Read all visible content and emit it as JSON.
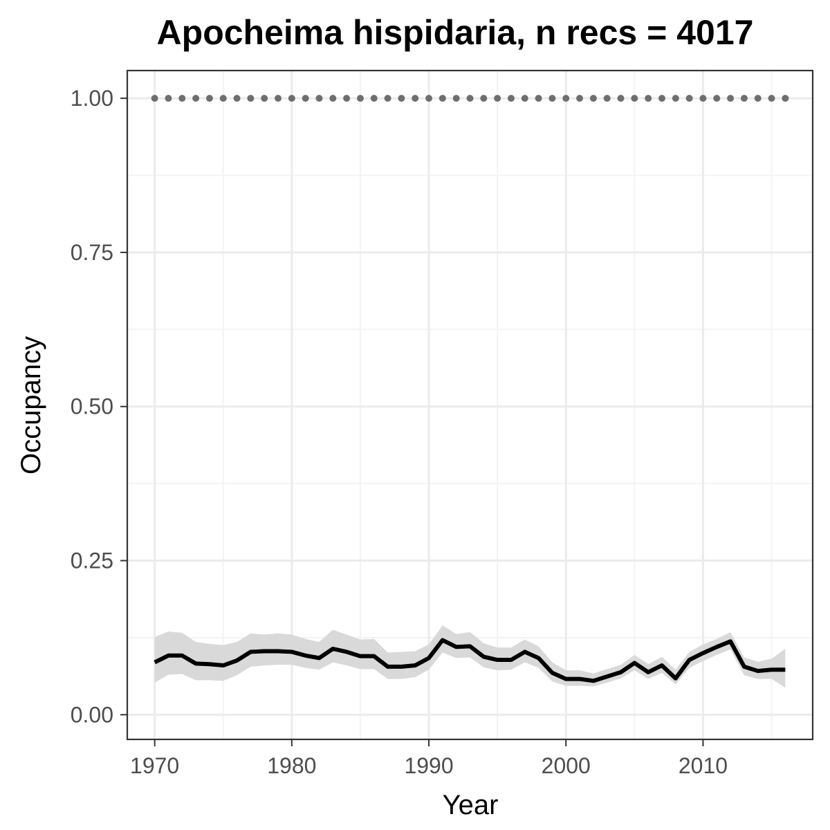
{
  "chart_data": {
    "type": "line",
    "title": "Apocheima hispidaria, n recs = 4017",
    "xlabel": "Year",
    "ylabel": "Occupancy",
    "xlim": [
      1968,
      2018
    ],
    "ylim": [
      -0.04,
      1.045
    ],
    "x_ticks": [
      1970,
      1980,
      1990,
      2000,
      2010
    ],
    "x_tick_labels": [
      "1970",
      "1980",
      "1990",
      "2000",
      "2010"
    ],
    "y_ticks": [
      0,
      0.25,
      0.5,
      0.75,
      1.0
    ],
    "y_tick_labels": [
      "0.00",
      "0.25",
      "0.50",
      "0.75",
      "1.00"
    ],
    "grid": true,
    "colors": {
      "line": "#000000",
      "ribbon": "#d9d9d9",
      "reference_points": "#6e6e6e"
    },
    "series": [
      {
        "kind": "line_with_ribbon",
        "x": [
          1970,
          1971,
          1972,
          1973,
          1974,
          1975,
          1976,
          1977,
          1978,
          1979,
          1980,
          1981,
          1982,
          1983,
          1984,
          1985,
          1986,
          1987,
          1988,
          1989,
          1990,
          1991,
          1992,
          1993,
          1994,
          1995,
          1996,
          1997,
          1998,
          1999,
          2000,
          2001,
          2002,
          2003,
          2004,
          2005,
          2006,
          2007,
          2008,
          2009,
          2010,
          2011,
          2012,
          2013,
          2014,
          2015,
          2016
        ],
        "y": [
          0.085,
          0.096,
          0.096,
          0.083,
          0.082,
          0.08,
          0.088,
          0.102,
          0.103,
          0.103,
          0.102,
          0.096,
          0.092,
          0.107,
          0.102,
          0.095,
          0.095,
          0.078,
          0.078,
          0.08,
          0.092,
          0.121,
          0.11,
          0.111,
          0.094,
          0.089,
          0.089,
          0.102,
          0.092,
          0.068,
          0.058,
          0.058,
          0.055,
          0.062,
          0.069,
          0.084,
          0.069,
          0.08,
          0.059,
          0.089,
          0.1,
          0.11,
          0.119,
          0.078,
          0.071,
          0.073,
          0.073
        ],
        "lower": [
          0.052,
          0.065,
          0.066,
          0.056,
          0.056,
          0.055,
          0.064,
          0.078,
          0.08,
          0.081,
          0.081,
          0.076,
          0.073,
          0.085,
          0.08,
          0.074,
          0.074,
          0.058,
          0.058,
          0.061,
          0.073,
          0.101,
          0.092,
          0.093,
          0.077,
          0.072,
          0.073,
          0.085,
          0.076,
          0.054,
          0.047,
          0.047,
          0.046,
          0.052,
          0.059,
          0.072,
          0.058,
          0.068,
          0.049,
          0.076,
          0.087,
          0.097,
          0.106,
          0.064,
          0.058,
          0.058,
          0.044
        ],
        "upper": [
          0.126,
          0.135,
          0.133,
          0.118,
          0.115,
          0.113,
          0.118,
          0.132,
          0.13,
          0.132,
          0.13,
          0.123,
          0.118,
          0.138,
          0.13,
          0.122,
          0.123,
          0.101,
          0.102,
          0.103,
          0.114,
          0.145,
          0.131,
          0.134,
          0.116,
          0.109,
          0.109,
          0.122,
          0.111,
          0.085,
          0.072,
          0.072,
          0.067,
          0.074,
          0.081,
          0.097,
          0.082,
          0.094,
          0.073,
          0.102,
          0.114,
          0.123,
          0.134,
          0.093,
          0.086,
          0.091,
          0.107
        ]
      },
      {
        "kind": "reference_points",
        "x": [
          1970,
          1971,
          1972,
          1973,
          1974,
          1975,
          1976,
          1977,
          1978,
          1979,
          1980,
          1981,
          1982,
          1983,
          1984,
          1985,
          1986,
          1987,
          1988,
          1989,
          1990,
          1991,
          1992,
          1993,
          1994,
          1995,
          1996,
          1997,
          1998,
          1999,
          2000,
          2001,
          2002,
          2003,
          2004,
          2005,
          2006,
          2007,
          2008,
          2009,
          2010,
          2011,
          2012,
          2013,
          2014,
          2015,
          2016
        ],
        "y": [
          1,
          1,
          1,
          1,
          1,
          1,
          1,
          1,
          1,
          1,
          1,
          1,
          1,
          1,
          1,
          1,
          1,
          1,
          1,
          1,
          1,
          1,
          1,
          1,
          1,
          1,
          1,
          1,
          1,
          1,
          1,
          1,
          1,
          1,
          1,
          1,
          1,
          1,
          1,
          1,
          1,
          1,
          1,
          1,
          1,
          1,
          1
        ]
      }
    ]
  }
}
